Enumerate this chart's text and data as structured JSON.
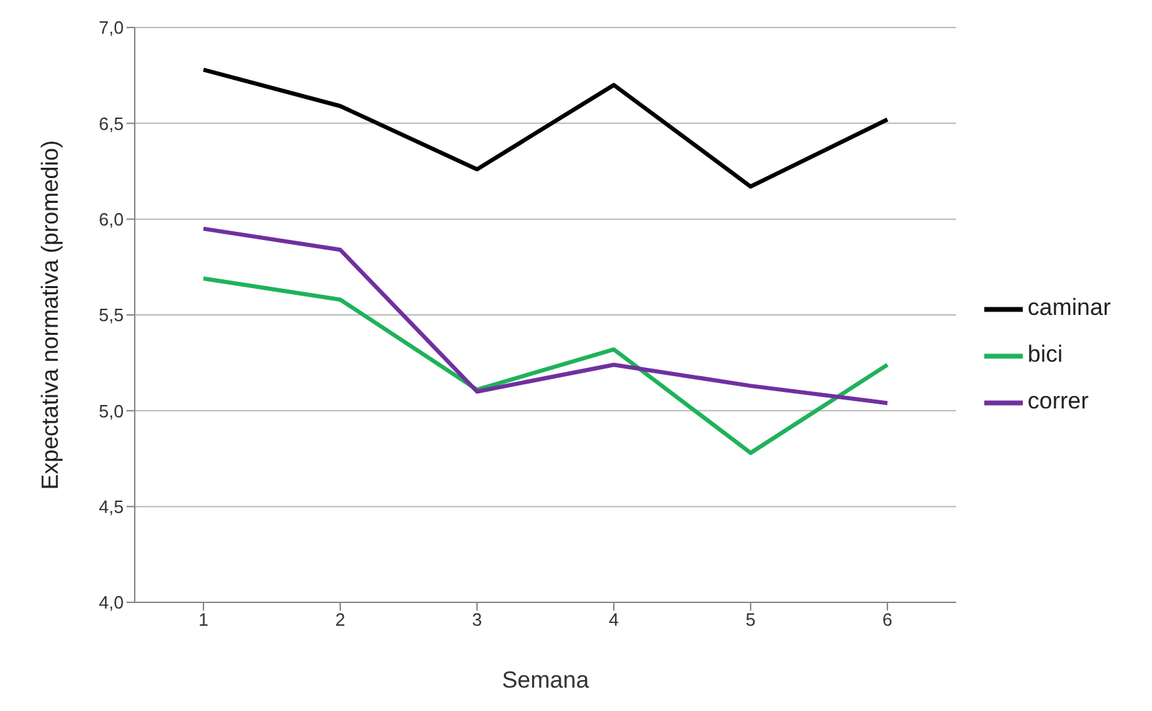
{
  "chart_data": {
    "type": "line",
    "xlabel": "Semana",
    "ylabel": "Expectativa normativa (promedio)",
    "categories": [
      "1",
      "2",
      "3",
      "4",
      "5",
      "6"
    ],
    "series": [
      {
        "name": "caminar",
        "color": "#000000",
        "values": [
          6.78,
          6.59,
          6.26,
          6.7,
          6.17,
          6.52
        ]
      },
      {
        "name": "bici",
        "color": "#1fb25a",
        "values": [
          5.69,
          5.58,
          5.11,
          5.32,
          4.78,
          5.24
        ]
      },
      {
        "name": "correr",
        "color": "#7030a0",
        "values": [
          5.95,
          5.84,
          5.1,
          5.24,
          5.13,
          5.04
        ]
      }
    ],
    "ylim": [
      4,
      7
    ],
    "yticks": [
      {
        "value": 4,
        "label": "4,0"
      },
      {
        "value": 4.5,
        "label": "4,5"
      },
      {
        "value": 5,
        "label": "5,0"
      },
      {
        "value": 5.5,
        "label": "5,5"
      },
      {
        "value": 6,
        "label": "6,0"
      },
      {
        "value": 6.5,
        "label": "6,5"
      },
      {
        "value": 7,
        "label": "7,0"
      }
    ],
    "grid": "y",
    "legend": "right",
    "marker": "none",
    "line_style": "solid"
  }
}
